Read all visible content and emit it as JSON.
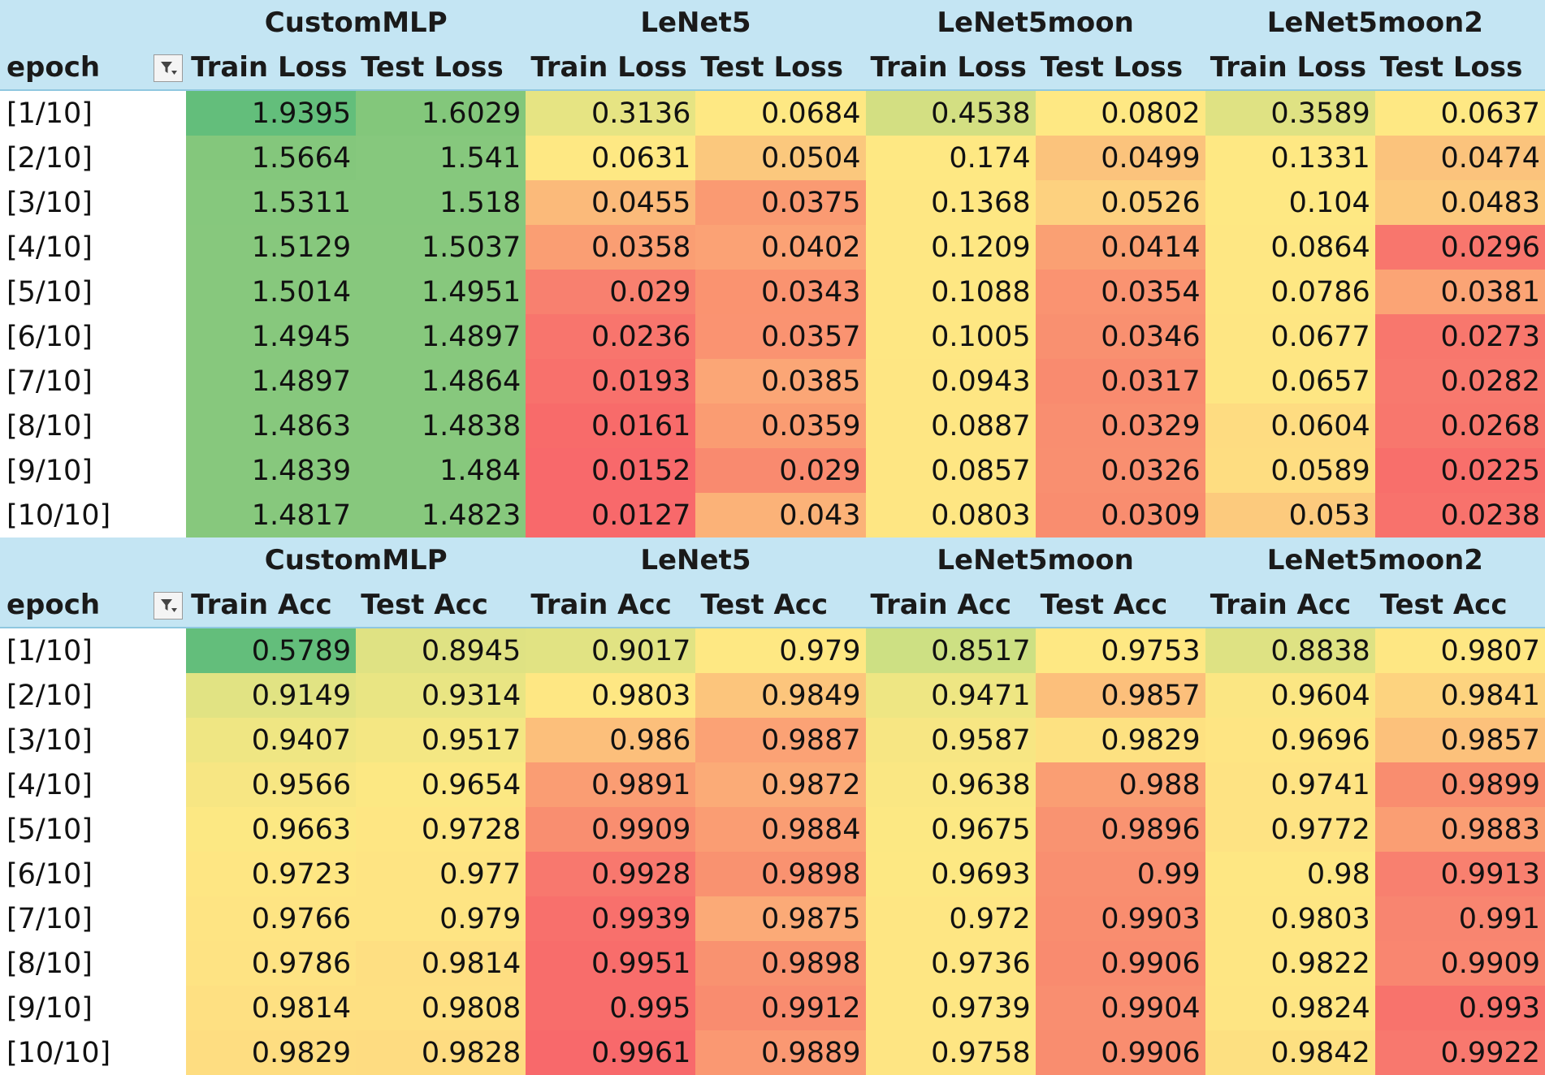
{
  "filter_icon": "filter-dropdown-icon",
  "tables": [
    {
      "models": [
        "CustomMLP",
        "LeNet5",
        "LeNet5moon",
        "LeNet5moon2"
      ],
      "row_header": "epoch",
      "col_headers": [
        "Train Loss",
        "Test Loss",
        "Train Loss",
        "Test Loss",
        "Train Loss",
        "Test Loss",
        "Train Loss",
        "Test Loss"
      ],
      "rows": [
        {
          "epoch": "[1/10]",
          "values": [
            "1.9395",
            "1.6029",
            "0.3136",
            "0.0684",
            "0.4538",
            "0.0802",
            "0.3589",
            "0.0637"
          ],
          "colors": [
            "#63be7b",
            "#83c77b",
            "#e6e483",
            "#fee883",
            "#d3df82",
            "#fee883",
            "#dfe283",
            "#fee883"
          ]
        },
        {
          "epoch": "[2/10]",
          "values": [
            "1.5664",
            "1.541",
            "0.0631",
            "0.0504",
            "0.174",
            "0.0499",
            "0.1331",
            "0.0474"
          ],
          "colors": [
            "#84c77c",
            "#86c87d",
            "#fee883",
            "#fbc87d",
            "#fee883",
            "#fbc37c",
            "#fee883",
            "#fbc37c"
          ]
        },
        {
          "epoch": "[3/10]",
          "values": [
            "1.5311",
            "1.518",
            "0.0455",
            "0.0375",
            "0.1368",
            "0.0526",
            "0.104",
            "0.0483"
          ],
          "colors": [
            "#86c87d",
            "#86c87d",
            "#fbba7a",
            "#fa9a72",
            "#fee783",
            "#fdd17f",
            "#fee883",
            "#fcc97d"
          ]
        },
        {
          "epoch": "[4/10]",
          "values": [
            "1.5129",
            "1.5037",
            "0.0358",
            "0.0402",
            "0.1209",
            "0.0414",
            "0.0864",
            "0.0296"
          ],
          "colors": [
            "#87c87d",
            "#87c87d",
            "#fa9e73",
            "#fba275",
            "#fee783",
            "#faa073",
            "#fee783",
            "#f8766d"
          ]
        },
        {
          "epoch": "[5/10]",
          "values": [
            "1.5014",
            "1.4951",
            "0.029",
            "0.0343",
            "0.1088",
            "0.0354",
            "0.0786",
            "0.0381"
          ],
          "colors": [
            "#87c87d",
            "#87c87d",
            "#f8806f",
            "#fa9370",
            "#fee783",
            "#fa9371",
            "#fee783",
            "#fba475"
          ]
        },
        {
          "epoch": "[6/10]",
          "values": [
            "1.4945",
            "1.4897",
            "0.0236",
            "0.0357",
            "0.1005",
            "0.0346",
            "0.0677",
            "0.0273"
          ],
          "colors": [
            "#87c87d",
            "#87c87d",
            "#f8756d",
            "#fa9371",
            "#fee783",
            "#f99070",
            "#fee683",
            "#f8776d"
          ]
        },
        {
          "epoch": "[7/10]",
          "values": [
            "1.4897",
            "1.4864",
            "0.0193",
            "0.0385",
            "0.0943",
            "0.0317",
            "0.0657",
            "0.0282"
          ],
          "colors": [
            "#87c87d",
            "#87c87d",
            "#f8716c",
            "#fba676",
            "#fee683",
            "#f98b6f",
            "#fee683",
            "#f8796e"
          ]
        },
        {
          "epoch": "[8/10]",
          "values": [
            "1.4863",
            "1.4838",
            "0.0161",
            "0.0359",
            "0.0887",
            "0.0329",
            "0.0604",
            "0.0268"
          ],
          "colors": [
            "#87c87d",
            "#87c87d",
            "#f86b6a",
            "#fa9c72",
            "#fee683",
            "#f98e70",
            "#fedc81",
            "#f8776d"
          ]
        },
        {
          "epoch": "[9/10]",
          "values": [
            "1.4839",
            "1.484",
            "0.0152",
            "0.029",
            "0.0857",
            "0.0326",
            "0.0589",
            "0.0225"
          ],
          "colors": [
            "#87c87d",
            "#87c87d",
            "#f8696b",
            "#f98a6f",
            "#fee683",
            "#f98f70",
            "#fedd81",
            "#f86f6b"
          ]
        },
        {
          "epoch": "[10/10]",
          "values": [
            "1.4817",
            "1.4823",
            "0.0127",
            "0.043",
            "0.0803",
            "0.0309",
            "0.053",
            "0.0238"
          ],
          "colors": [
            "#87c87d",
            "#87c87d",
            "#f8696b",
            "#fbb278",
            "#fee683",
            "#f98d6f",
            "#fcca7d",
            "#f8726c"
          ]
        }
      ]
    },
    {
      "models": [
        "CustomMLP",
        "LeNet5",
        "LeNet5moon",
        "LeNet5moon2"
      ],
      "row_header": "epoch",
      "col_headers": [
        "Train Acc",
        "Test Acc",
        "Train Acc",
        "Test Acc",
        "Train Acc",
        "Test Acc",
        "Train Acc",
        "Test Acc"
      ],
      "rows": [
        {
          "epoch": "[1/10]",
          "values": [
            "0.5789",
            "0.8945",
            "0.9017",
            "0.979",
            "0.8517",
            "0.9753",
            "0.8838",
            "0.9807"
          ],
          "colors": [
            "#63be7b",
            "#dfe283",
            "#e1e383",
            "#fee883",
            "#cde083",
            "#fee883",
            "#dee283",
            "#fee783"
          ]
        },
        {
          "epoch": "[2/10]",
          "values": [
            "0.9149",
            "0.9314",
            "0.9803",
            "0.9849",
            "0.9471",
            "0.9857",
            "0.9604",
            "0.9841"
          ],
          "colors": [
            "#e1e383",
            "#e9e583",
            "#fee783",
            "#fcc57c",
            "#eee683",
            "#fcbf7b",
            "#fbe683",
            "#fdd37f"
          ]
        },
        {
          "epoch": "[3/10]",
          "values": [
            "0.9407",
            "0.9517",
            "0.986",
            "0.9887",
            "0.9587",
            "0.9829",
            "0.9696",
            "0.9857"
          ],
          "colors": [
            "#efe683",
            "#f4e783",
            "#fcbf7b",
            "#fba275",
            "#f7e683",
            "#fde181",
            "#fee583",
            "#fcc17b"
          ]
        },
        {
          "epoch": "[4/10]",
          "values": [
            "0.9566",
            "0.9654",
            "0.9891",
            "0.9872",
            "0.9638",
            "0.988",
            "0.9741",
            "0.9899"
          ],
          "colors": [
            "#f7e683",
            "#fce883",
            "#fa9d73",
            "#fbab77",
            "#fae783",
            "#fa9e73",
            "#fee383",
            "#f98d6f"
          ]
        },
        {
          "epoch": "[5/10]",
          "values": [
            "0.9663",
            "0.9728",
            "0.9909",
            "0.9884",
            "0.9675",
            "0.9896",
            "0.9772",
            "0.9883"
          ],
          "colors": [
            "#fce883",
            "#fee683",
            "#f98e70",
            "#fa9d73",
            "#fce883",
            "#f99371",
            "#fee383",
            "#fa9e73"
          ]
        },
        {
          "epoch": "[6/10]",
          "values": [
            "0.9723",
            "0.977",
            "0.9928",
            "0.9898",
            "0.9693",
            "0.99",
            "0.98",
            "0.9913"
          ],
          "colors": [
            "#fee683",
            "#fee483",
            "#f8786e",
            "#f99270",
            "#fde883",
            "#f98f70",
            "#fee783",
            "#f8806f"
          ]
        },
        {
          "epoch": "[7/10]",
          "values": [
            "0.9766",
            "0.979",
            "0.9939",
            "0.9875",
            "0.972",
            "0.9903",
            "0.9803",
            "0.991"
          ],
          "colors": [
            "#fee483",
            "#fee483",
            "#f8706c",
            "#fbaa77",
            "#fee683",
            "#f98d6f",
            "#fee683",
            "#f88570"
          ]
        },
        {
          "epoch": "[8/10]",
          "values": [
            "0.9786",
            "0.9814",
            "0.9951",
            "0.9898",
            "0.9736",
            "0.9906",
            "0.9822",
            "0.9909"
          ],
          "colors": [
            "#fee383",
            "#fedf82",
            "#f86d6b",
            "#f99270",
            "#fee683",
            "#f98b6f",
            "#fee683",
            "#f98670"
          ]
        },
        {
          "epoch": "[9/10]",
          "values": [
            "0.9814",
            "0.9808",
            "0.995",
            "0.9912",
            "0.9739",
            "0.9904",
            "0.9824",
            "0.993"
          ],
          "colors": [
            "#fee082",
            "#fee082",
            "#f86d6b",
            "#f98c6f",
            "#fee683",
            "#f98e70",
            "#fee583",
            "#f8736c"
          ]
        },
        {
          "epoch": "[10/10]",
          "values": [
            "0.9829",
            "0.9828",
            "0.9961",
            "0.9889",
            "0.9758",
            "0.9906",
            "0.9842",
            "0.9922"
          ],
          "colors": [
            "#fedd81",
            "#fedc81",
            "#f8696b",
            "#fa9872",
            "#fee583",
            "#f98d6f",
            "#fde081",
            "#f8786e"
          ]
        }
      ]
    }
  ]
}
